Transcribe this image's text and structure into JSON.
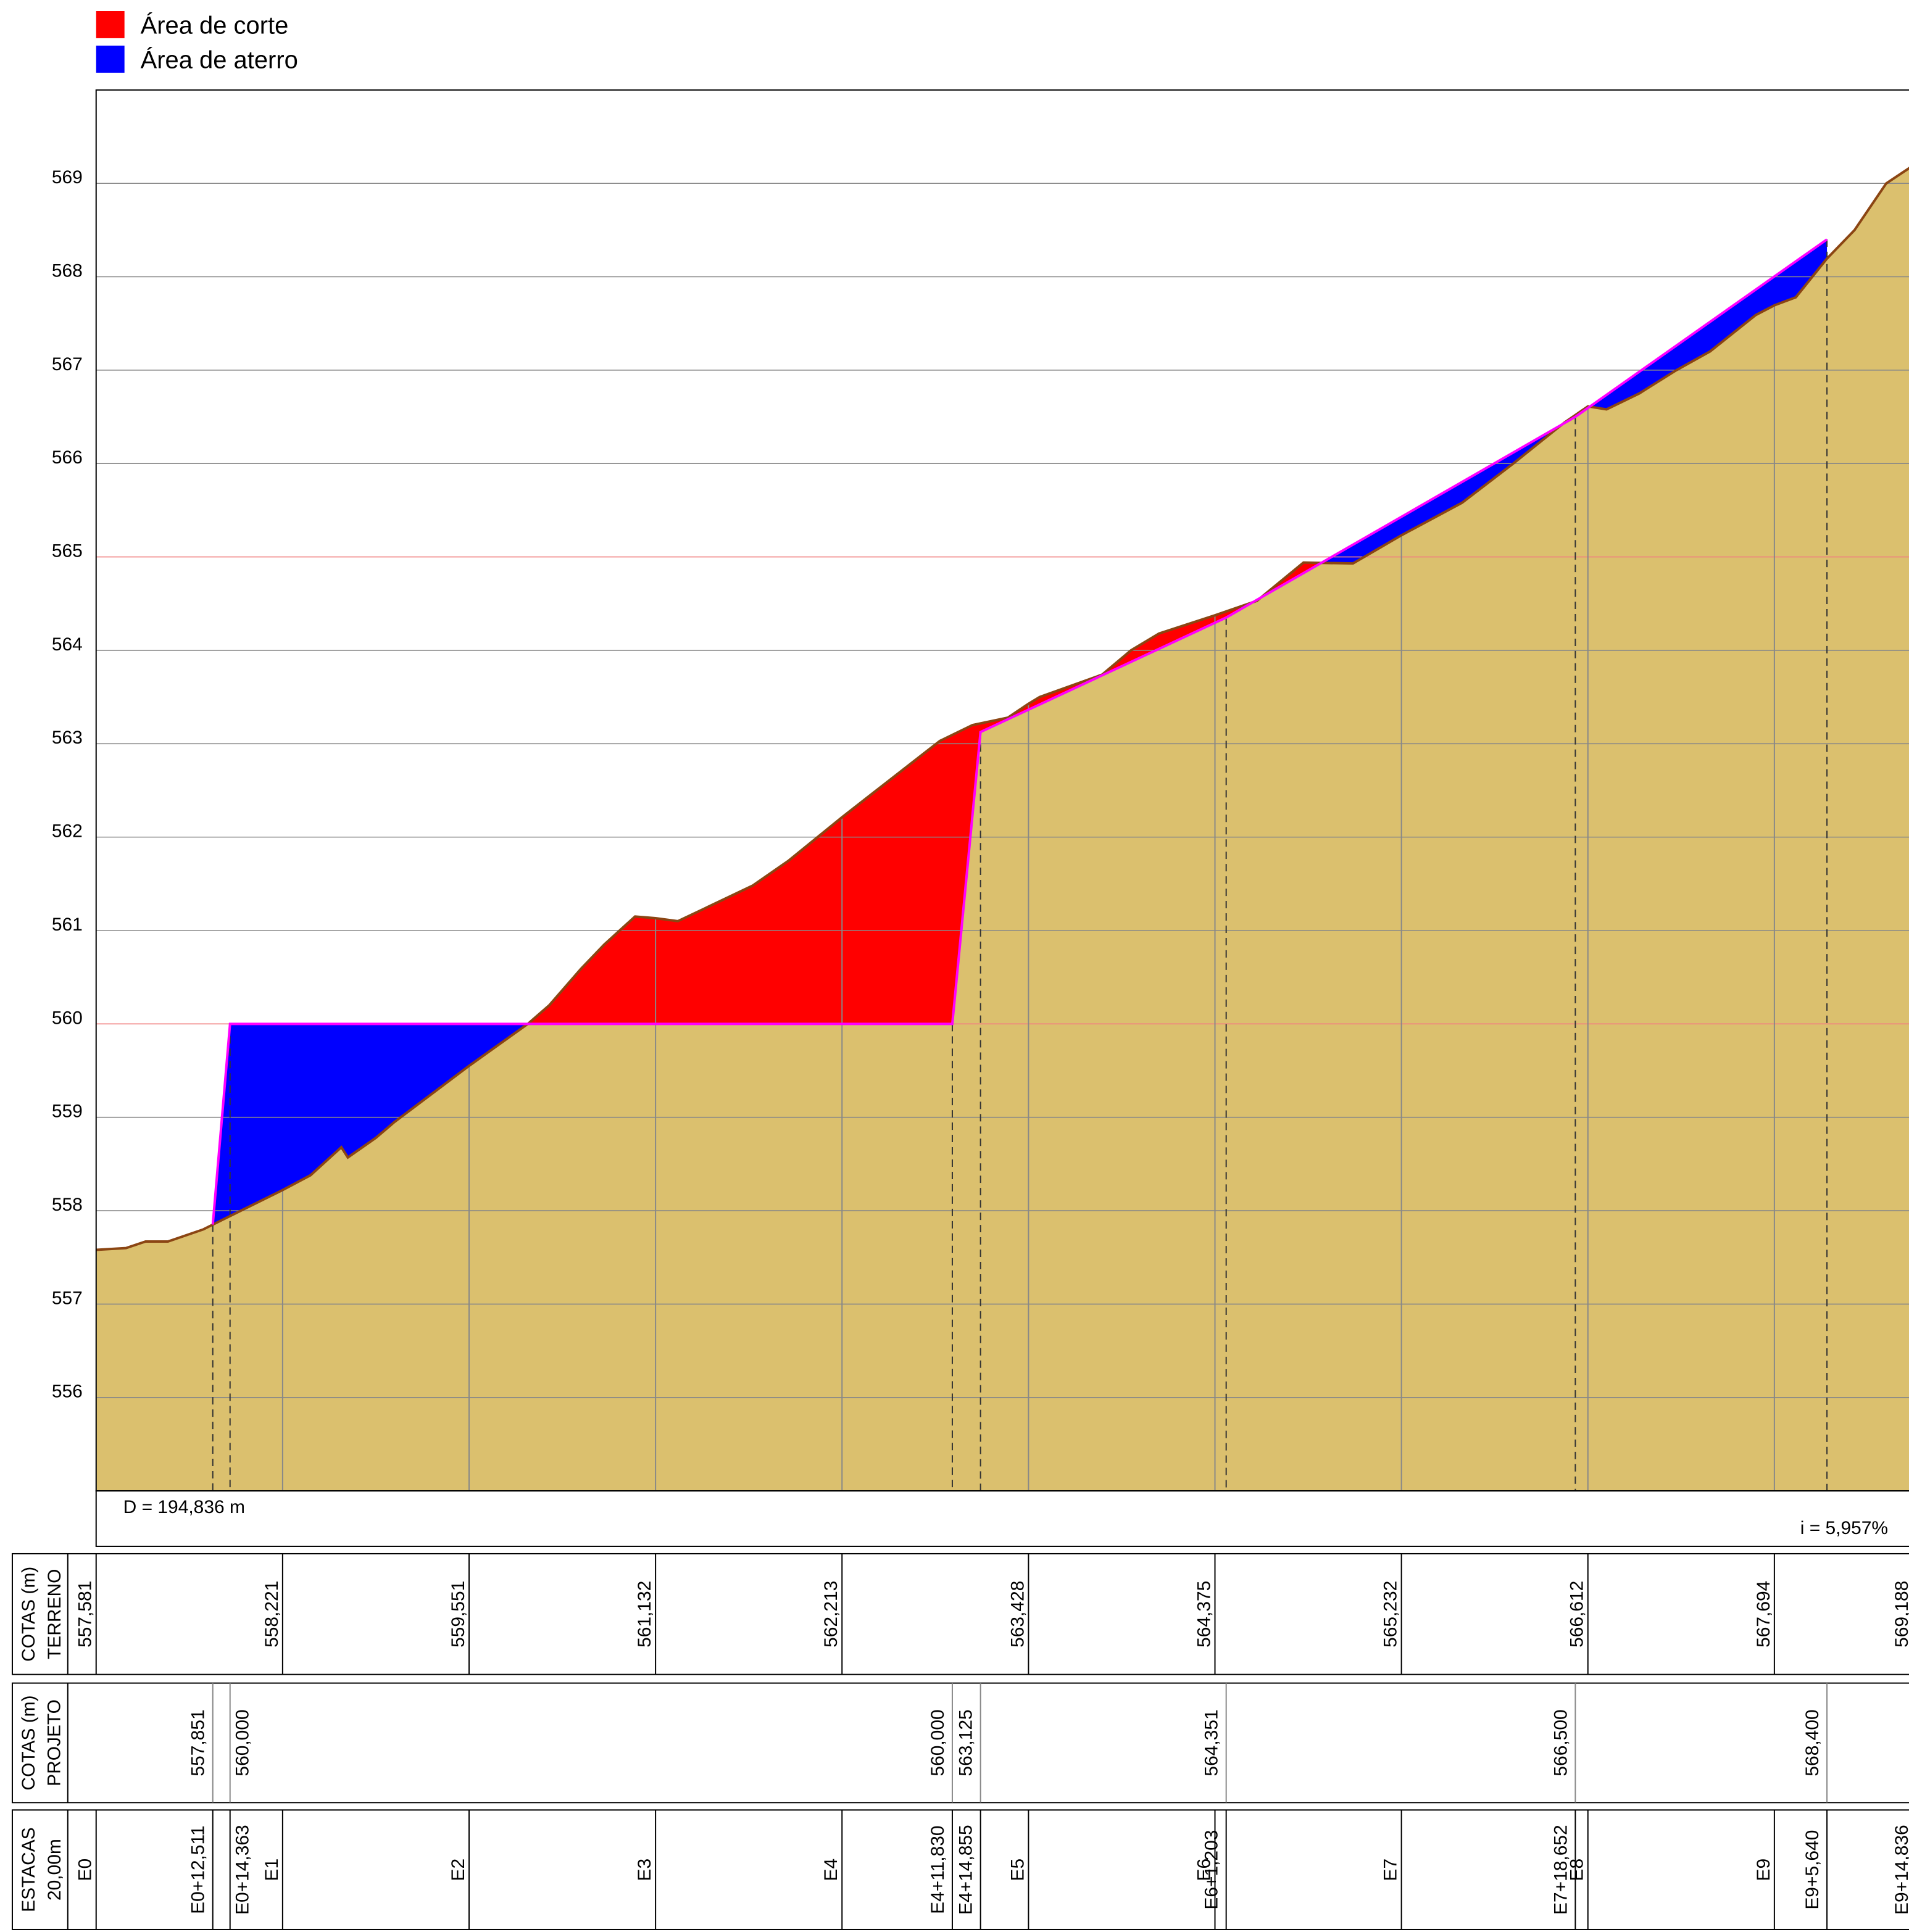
{
  "chart_data": {
    "type": "profile",
    "legend": [
      {
        "name": "Área de corte",
        "color": "#ff0000"
      },
      {
        "name": "Área de aterro",
        "color": "#0000ff"
      }
    ],
    "xlim": [
      0,
      194.836
    ],
    "ylim": [
      555,
      570
    ],
    "yticks": [
      556,
      557,
      558,
      559,
      560,
      561,
      562,
      563,
      564,
      565,
      566,
      567,
      568,
      569
    ],
    "grid": true,
    "grid_color": "#888888",
    "highlight_ticks": [
      560,
      565
    ],
    "highlight_color": "#f08080",
    "terrain": {
      "color": "#dbc06e",
      "line_color": "#8b4513",
      "x": [
        0,
        3.2,
        5.3,
        7.7,
        11.5,
        12.511,
        20,
        23,
        26.3,
        27,
        30,
        32,
        40,
        46.3,
        48.6,
        52,
        54.5,
        57.8,
        60,
        62.4,
        70.4,
        74.3,
        80,
        83.3,
        90.5,
        94,
        97.8,
        100,
        101.2,
        107.9,
        111,
        114,
        120,
        124.5,
        129.5,
        134.8,
        140,
        146.5,
        152,
        157.5,
        160,
        162,
        165.5,
        169.5,
        173.1,
        178,
        180,
        182.3,
        185.6,
        188.6,
        192,
        194.836
      ],
      "values": [
        557.581,
        557.6,
        557.67,
        557.67,
        557.8,
        557.851,
        558.221,
        558.38,
        558.68,
        558.57,
        558.78,
        558.95,
        559.551,
        560.0,
        560.2,
        560.59,
        560.85,
        561.15,
        561.132,
        561.1,
        561.48,
        561.75,
        562.213,
        562.47,
        563.03,
        563.2,
        563.28,
        563.428,
        563.5,
        563.74,
        564.0,
        564.18,
        564.375,
        564.53,
        564.94,
        564.93,
        565.232,
        565.58,
        566.0,
        566.44,
        566.612,
        566.58,
        566.75,
        567.0,
        567.2,
        567.59,
        567.694,
        567.78,
        568.19,
        568.5,
        569.0,
        569.188
      ]
    },
    "project_points": {
      "color": "#ff00ff",
      "names": [
        "E0+12,511",
        "E0+14,363",
        "E4+11,830",
        "E4+14,855",
        "E6+1,203",
        "E7+18,652",
        "E9+5,640"
      ],
      "x": [
        12.511,
        14.363,
        91.83,
        94.855,
        121.203,
        158.652,
        185.64
      ],
      "values": [
        557.851,
        560,
        560,
        563.125,
        564.351,
        566.5,
        568.4
      ],
      "value_labels": [
        "557,851",
        "560,000",
        "560,000",
        "563,125",
        "564,351",
        "566,500",
        "568,400"
      ]
    },
    "stations": {
      "names": [
        "E0",
        "E1",
        "E2",
        "E3",
        "E4",
        "E5",
        "E6",
        "E7",
        "E8",
        "E9",
        "E9+14,836"
      ],
      "x": [
        0,
        20,
        40,
        60,
        80,
        100,
        120,
        140,
        160,
        180,
        194.836
      ],
      "values": [
        557.581,
        558.221,
        559.551,
        561.132,
        562.213,
        563.428,
        564.375,
        565.232,
        566.612,
        567.694,
        569.188
      ],
      "value_labels": [
        "557,581",
        "558,221",
        "559,551",
        "561,132",
        "562,213",
        "563,428",
        "564,375",
        "565,232",
        "566,612",
        "567,694",
        "569,188"
      ]
    },
    "distance_label": "D = 194,836 m",
    "slope_label": "i = 5,957%",
    "row_headers": {
      "terrain": [
        "COTAS (m)",
        "TERRENO"
      ],
      "project": [
        "COTAS (m)",
        "PROJETO"
      ],
      "stations": [
        "ESTACAS",
        "20,00m"
      ]
    }
  }
}
